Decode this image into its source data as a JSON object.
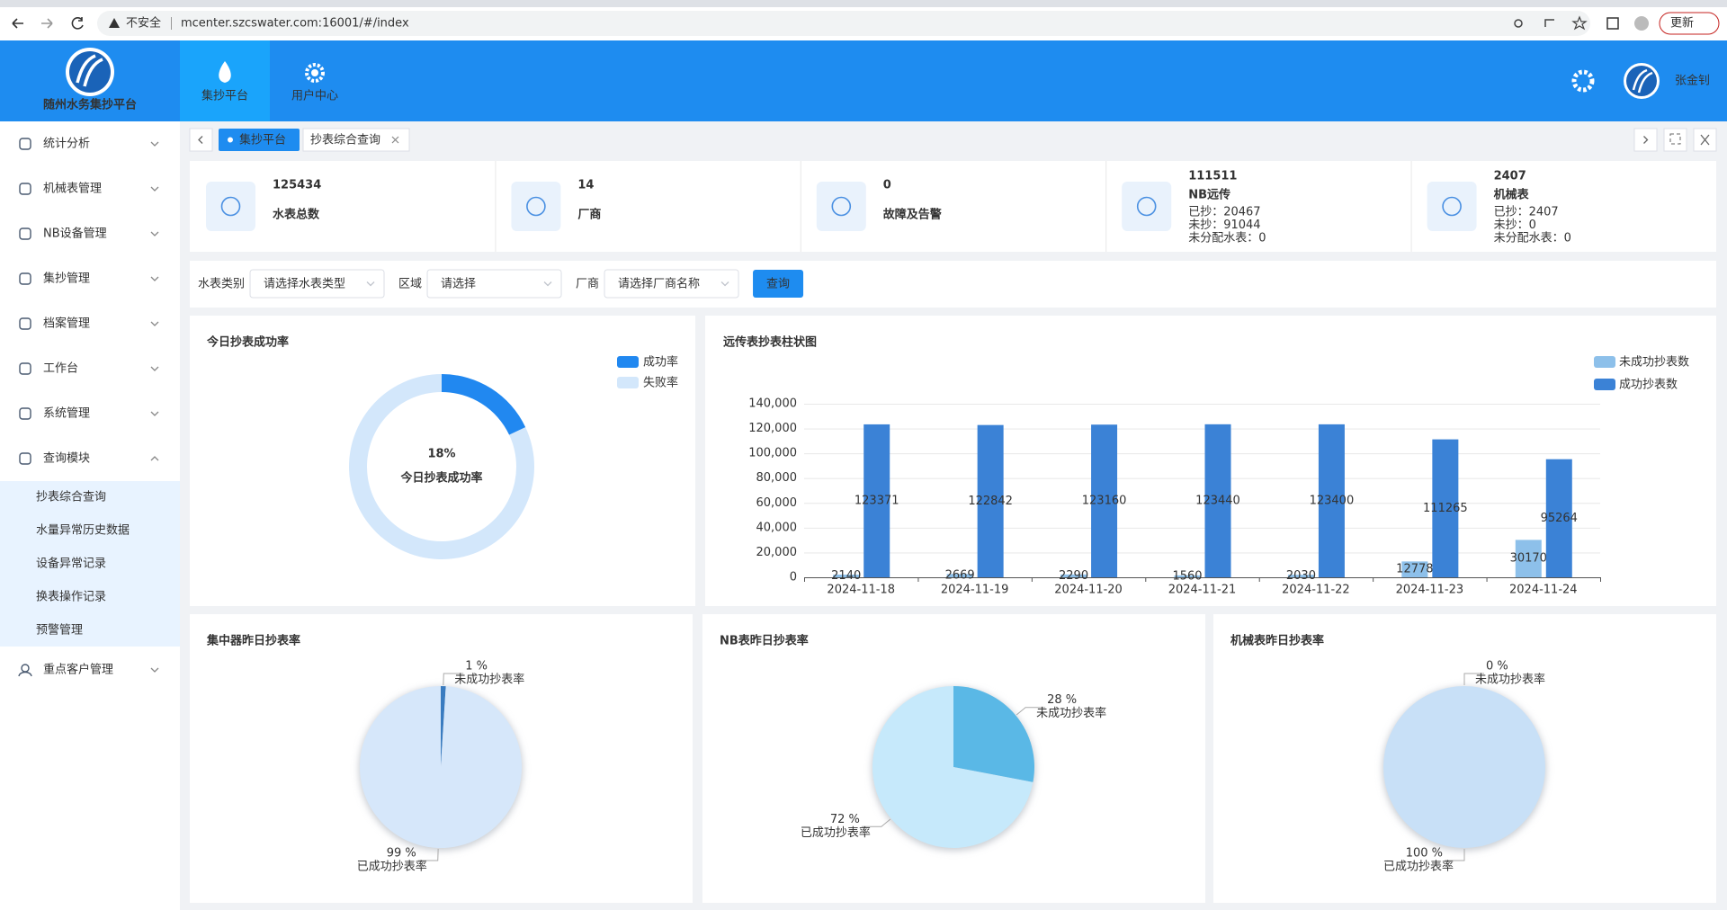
{
  "browser": {
    "security": "不安全",
    "url": "mcenter.szcswater.com:16001/#/index",
    "update": "更新"
  },
  "header": {
    "title": "随州水务集抄平台",
    "nav": [
      "集抄平台",
      "用户中心"
    ],
    "user": "张金钊"
  },
  "sidebar": {
    "menu": [
      "统计分析",
      "机械表管理",
      "NB设备管理",
      "集抄管理",
      "档案管理",
      "工作台",
      "系统管理",
      "查询模块"
    ],
    "submenu": [
      "抄表综合查询",
      "水量异常历史数据",
      "设备异常记录",
      "换表操作记录",
      "预警管理"
    ],
    "menu_after": [
      "重点客户管理"
    ]
  },
  "tabs": [
    "集抄平台",
    "抄表综合查询"
  ],
  "stats": [
    {
      "value": 125434,
      "label": "水表总数"
    },
    {
      "value": 14,
      "label": "厂商"
    },
    {
      "value": 0,
      "label": "故障及告警"
    },
    {
      "value": 111511,
      "label": "NB远传",
      "details": [
        "已抄：20467",
        "未抄：91044",
        "未分配水表：0"
      ]
    },
    {
      "value": 2407,
      "label": "机械表",
      "details": [
        "已抄：2407",
        "未抄：0",
        "未分配水表：0"
      ]
    }
  ],
  "filters": {
    "fields": [
      {
        "label": "水表类别",
        "placeholder": "请选择水表类型"
      },
      {
        "label": "区域",
        "placeholder": "请选择"
      },
      {
        "label": "厂商",
        "placeholder": "请选择厂商名称"
      }
    ],
    "button": "查询"
  },
  "charts": [
    {
      "type": "donut",
      "title": "今日抄表成功率",
      "categories": [
        "成功率",
        "失败率"
      ],
      "values": [
        18,
        82
      ],
      "value_labels": [
        "18%",
        null
      ],
      "center_text": "今日抄表成功率",
      "colors": [
        "#2188f0",
        "#d3e7fb"
      ]
    },
    {
      "type": "bar",
      "title": "远传表抄表柱状图",
      "categories": [
        "2024-11-18",
        "2024-11-19",
        "2024-11-20",
        "2024-11-21",
        "2024-11-22",
        "2024-11-23",
        "2024-11-24"
      ],
      "series": [
        {
          "name": "未成功抄表数",
          "color": "#8dc0ea",
          "values": [
            2140,
            2669,
            2290,
            1560,
            2030,
            12778,
            30170
          ]
        },
        {
          "name": "成功抄表数",
          "color": "#3b82d6",
          "values": [
            123371,
            122842,
            123160,
            123440,
            123400,
            111265,
            95264
          ]
        }
      ],
      "ylim": [
        0,
        140000
      ],
      "yticks": [
        0,
        {
          "value": 20000,
          "label": "20,000"
        },
        {
          "value": 40000,
          "label": "40,000"
        },
        {
          "value": 60000,
          "label": "60,000"
        },
        {
          "value": 80000,
          "label": "80,000"
        },
        {
          "value": 100000,
          "label": "100,000"
        },
        {
          "value": 120000,
          "label": "120,000"
        },
        {
          "value": 140000,
          "label": "140,000"
        }
      ],
      "grid": true
    },
    {
      "type": "pie",
      "title": "集中器昨日抄表率",
      "categories": [
        "未成功抄表率",
        "已成功抄表率"
      ],
      "values": [
        1,
        99
      ],
      "value_labels": [
        "1 %",
        "99 %"
      ],
      "colors": [
        "#3a7cc0",
        "#d6e7fa"
      ],
      "label_colors": [
        "#e0506a",
        "#4aa0d9"
      ]
    },
    {
      "type": "pie",
      "title": "NB表昨日抄表率",
      "categories": [
        "未成功抄表率",
        "已成功抄表率"
      ],
      "values": [
        28,
        72
      ],
      "value_labels": [
        "28 %",
        "72 %"
      ],
      "colors": [
        "#5ab8e6",
        "#c6e9fb"
      ],
      "label_colors": [
        "#e0506a",
        "#4aa0d9"
      ]
    },
    {
      "type": "pie",
      "title": "机械表昨日抄表率",
      "categories": [
        "未成功抄表率",
        "已成功抄表率"
      ],
      "values": [
        0,
        100
      ],
      "value_labels": [
        "0 %",
        "100 %"
      ],
      "colors": [
        "#3a7cc0",
        "#c8e0f7"
      ],
      "label_colors": [
        "#e0506a",
        "#4aa0d9"
      ]
    }
  ]
}
